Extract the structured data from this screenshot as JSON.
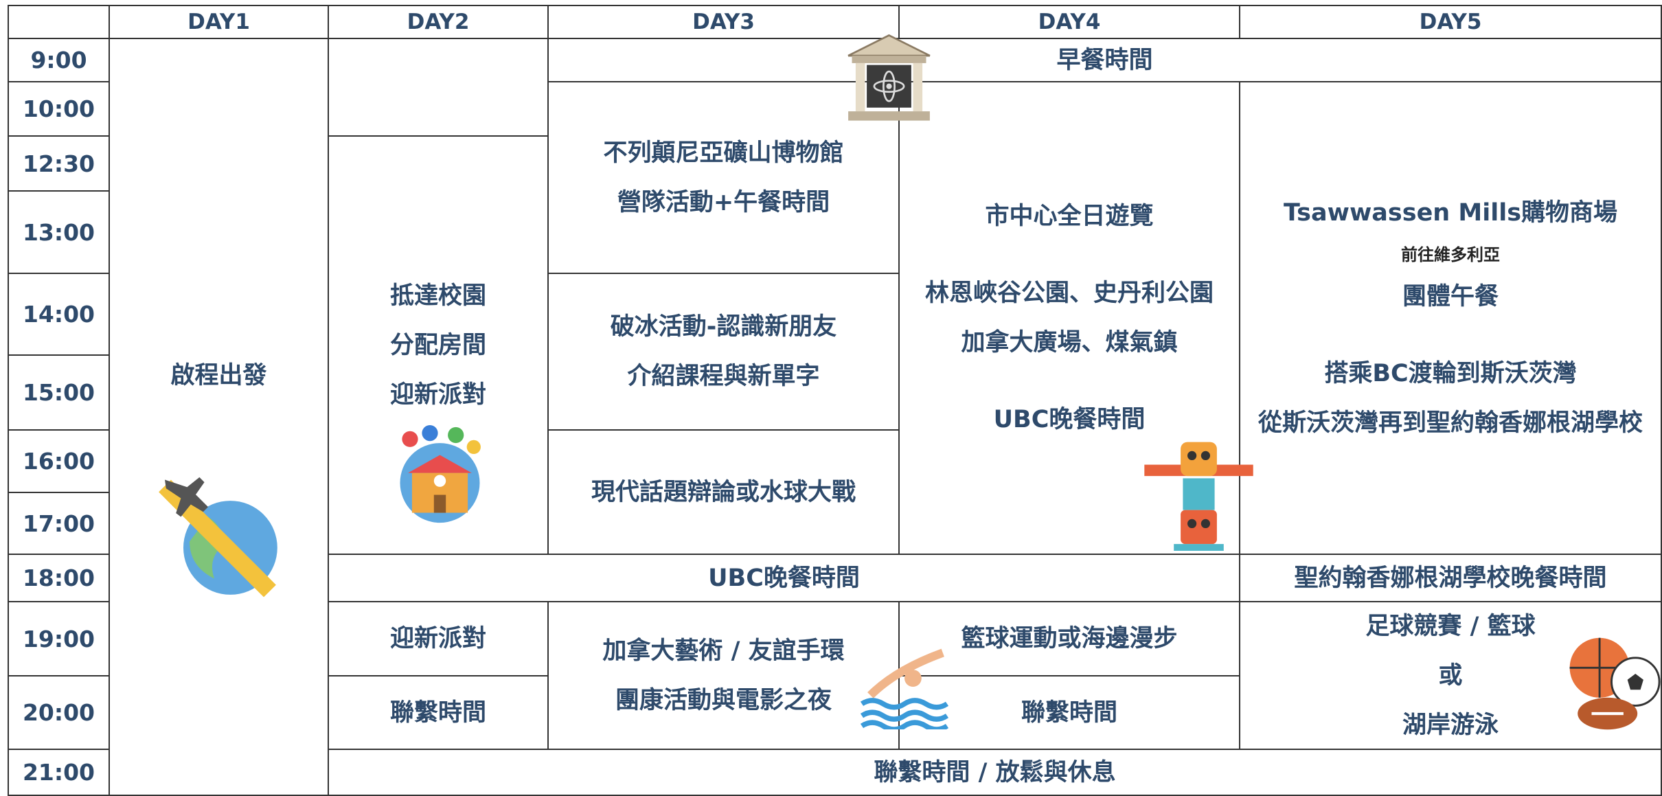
{
  "header": {
    "days": [
      "DAY1",
      "DAY2",
      "DAY3",
      "DAY4",
      "DAY5"
    ]
  },
  "times": [
    "9:00",
    "10:00",
    "12:30",
    "13:00",
    "14:00",
    "15:00",
    "16:00",
    "17:00",
    "18:00",
    "19:00",
    "20:00",
    "21:00"
  ],
  "cells": [
    {
      "lines": [
        "早餐時間"
      ]
    },
    {
      "lines": [
        "啟程出發"
      ]
    },
    {
      "lines": [
        "抵達校園",
        "分配房間",
        "迎新派對"
      ]
    },
    {
      "lines": [
        "不列顛尼亞礦山博物館",
        "營隊活動+午餐時間"
      ]
    },
    {
      "lines": [
        "破冰活動-認識新朋友",
        "介紹課程與新單字"
      ]
    },
    {
      "lines": [
        "現代話題辯論或水球大戰"
      ]
    },
    {
      "lines": [
        "市中心全日遊覽",
        "林恩峽谷公園、史丹利公園",
        "加拿大廣場、煤氣鎮",
        "UBC晚餐時間"
      ]
    },
    {
      "lines": [
        "Tsawwassen Mills購物商場",
        "前往維多利亞",
        "團體午餐",
        "搭乘BC渡輪到斯沃茨灣",
        "從斯沃茨灣再到聖約翰香娜根湖學校"
      ]
    },
    {
      "lines": [
        "UBC晚餐時間"
      ]
    },
    {
      "lines": [
        "聖約翰香娜根湖學校晚餐時間"
      ]
    },
    {
      "lines": [
        "迎新派對"
      ]
    },
    {
      "lines": [
        "聯繫時間"
      ]
    },
    {
      "lines": [
        "加拿大藝術 / 友誼手環",
        "團康活動與電影之夜"
      ]
    },
    {
      "lines": [
        "籃球運動或海邊漫步"
      ]
    },
    {
      "lines": [
        "聯繫時間"
      ]
    },
    {
      "lines": [
        "足球競賽 / 籃球",
        "或",
        "湖岸游泳"
      ]
    },
    {
      "lines": [
        "聯繫時間 / 放鬆與休息"
      ]
    }
  ]
}
